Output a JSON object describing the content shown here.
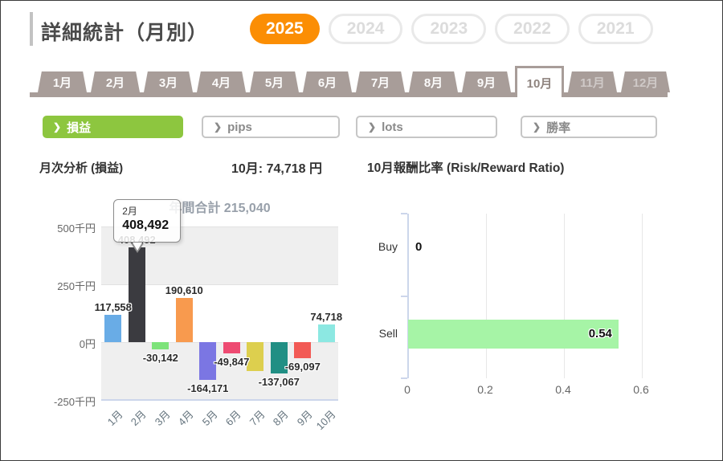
{
  "page": {
    "title": "詳細統計（月別）"
  },
  "years": [
    {
      "label": "2025",
      "active": true
    },
    {
      "label": "2024",
      "active": false
    },
    {
      "label": "2023",
      "active": false
    },
    {
      "label": "2022",
      "active": false
    },
    {
      "label": "2021",
      "active": false
    }
  ],
  "month_tabs": [
    {
      "label": "1月",
      "state": "normal"
    },
    {
      "label": "2月",
      "state": "normal"
    },
    {
      "label": "3月",
      "state": "normal"
    },
    {
      "label": "4月",
      "state": "normal"
    },
    {
      "label": "5月",
      "state": "normal"
    },
    {
      "label": "6月",
      "state": "normal"
    },
    {
      "label": "7月",
      "state": "normal"
    },
    {
      "label": "8月",
      "state": "normal"
    },
    {
      "label": "9月",
      "state": "normal"
    },
    {
      "label": "10月",
      "state": "active"
    },
    {
      "label": "11月",
      "state": "muted"
    },
    {
      "label": "12月",
      "state": "muted"
    }
  ],
  "filters": [
    {
      "key": "profit",
      "label": "損益",
      "active": true
    },
    {
      "key": "pips",
      "label": "pips",
      "active": false
    },
    {
      "key": "lots",
      "label": "lots",
      "active": false
    },
    {
      "key": "winrate",
      "label": "勝率",
      "active": false
    }
  ],
  "section": {
    "left_title": "月次分析 (損益)",
    "month_total": "10月: 74,718 円",
    "right_title": "10月報酬比率 (Risk/Reward Ratio)"
  },
  "colors": {
    "accent_orange": "#fb8e04",
    "accent_green": "#8dc63f",
    "taupe": "#a89d99",
    "band_gray": "#efefef",
    "axis_blue": "#ccd6eb"
  },
  "chart_data": [
    {
      "type": "bar",
      "title": "年間合計 215,040",
      "categories": [
        "1月",
        "2月",
        "3月",
        "4月",
        "5月",
        "6月",
        "7月",
        "8月",
        "9月",
        "10月"
      ],
      "values": [
        117558,
        408492,
        -30142,
        190610,
        -164171,
        -49847,
        -126014,
        -137067,
        -69097,
        74718
      ],
      "data_labels": [
        "117,558",
        "408,492",
        "-30,142",
        "190,610",
        "-164,171",
        "-49,847",
        "",
        "-137,067",
        "-69,097",
        "74,718"
      ],
      "bar_colors": [
        "#69ace6",
        "#3b3b40",
        "#7de37a",
        "#f89a4e",
        "#7b76e3",
        "#ee4b72",
        "#ddcf4e",
        "#218f84",
        "#f25a55",
        "#8ce8e2"
      ],
      "yticks": [
        {
          "label": "500千円",
          "value": 500000
        },
        {
          "label": "250千円",
          "value": 250000
        },
        {
          "label": "0円",
          "value": 0
        },
        {
          "label": "-250千円",
          "value": -250000
        }
      ],
      "ylim": [
        -250000,
        500000
      ],
      "grid": "alternate-bands",
      "tooltip": {
        "category": "2月",
        "value": "408,492"
      }
    },
    {
      "type": "bar-horizontal",
      "categories": [
        "Buy",
        "Sell"
      ],
      "values": [
        0,
        0.54
      ],
      "data_labels": [
        "0",
        "0.54"
      ],
      "bar_color": "#a6f4a6",
      "xticks": [
        {
          "label": "0",
          "value": 0
        },
        {
          "label": "0.2",
          "value": 0.2
        },
        {
          "label": "0.4",
          "value": 0.4
        },
        {
          "label": "0.6",
          "value": 0.6
        }
      ],
      "xlim": [
        0,
        0.73
      ],
      "legend": "off"
    }
  ]
}
